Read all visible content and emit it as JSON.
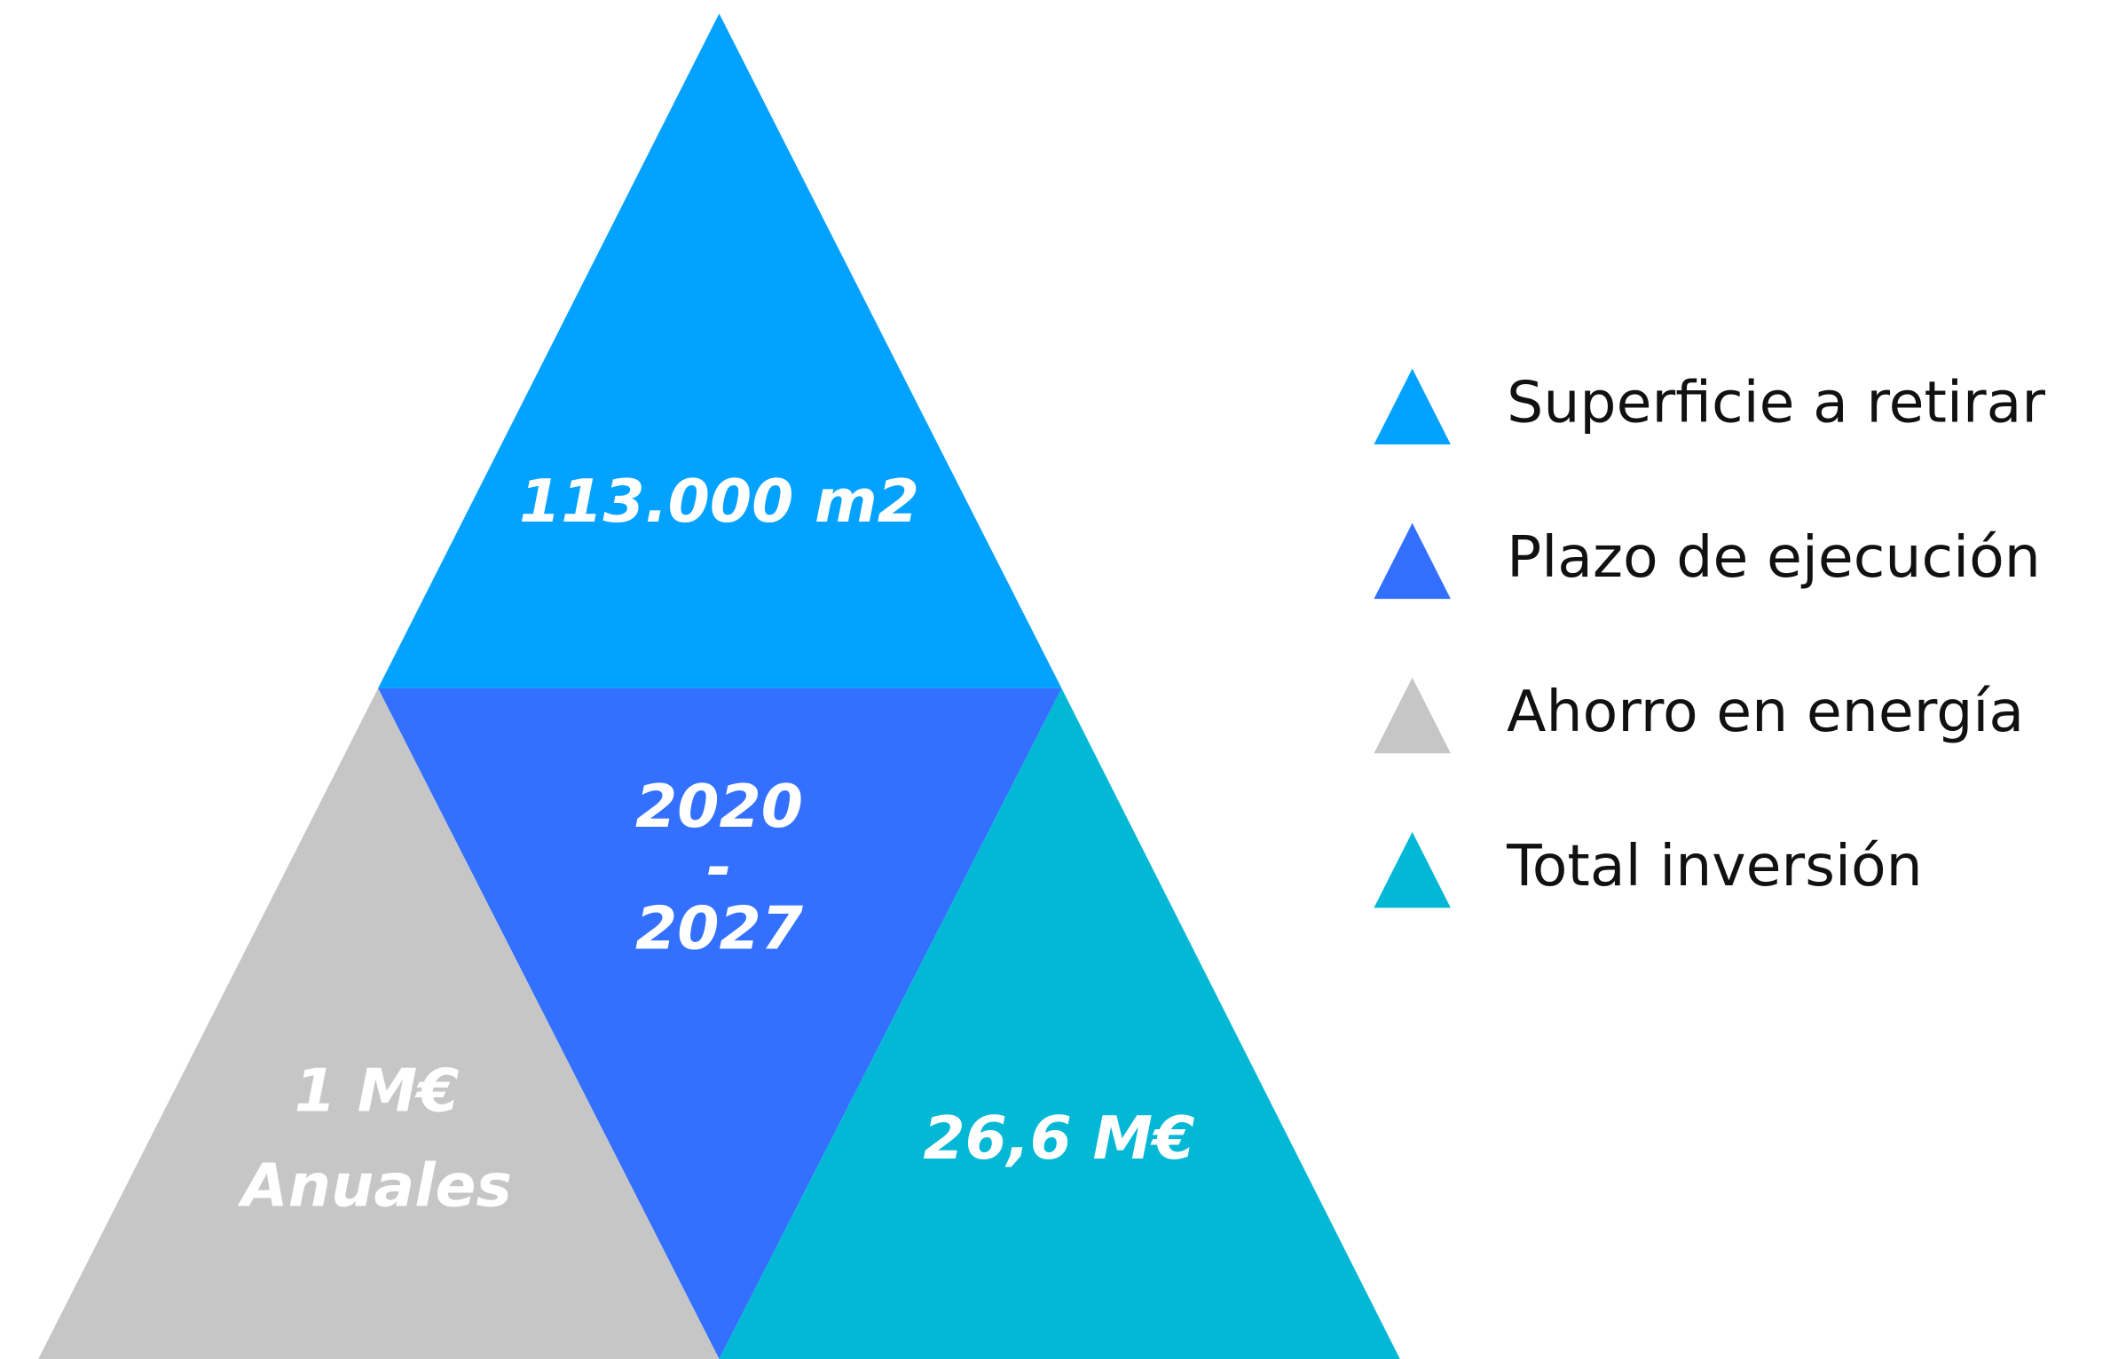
{
  "segments": [
    {
      "color": "#02a2fe",
      "lines": [
        "113.000 m2"
      ]
    },
    {
      "color": "#3370ff",
      "lines": [
        "2020",
        "-",
        "2027"
      ]
    },
    {
      "color": "#c6c6c6",
      "lines": [
        "1 M€",
        "Anuales"
      ]
    },
    {
      "color": "#02b8d4",
      "lines": [
        "26,6 M€"
      ]
    }
  ],
  "legend": [
    {
      "label": "Superficie a retirar",
      "color": "#02a2fe"
    },
    {
      "label": "Plazo de ejecución",
      "color": "#3370ff"
    },
    {
      "label": "Ahorro en energía",
      "color": "#c6c6c6"
    },
    {
      "label": "Total inversión",
      "color": "#02b8d4"
    }
  ]
}
